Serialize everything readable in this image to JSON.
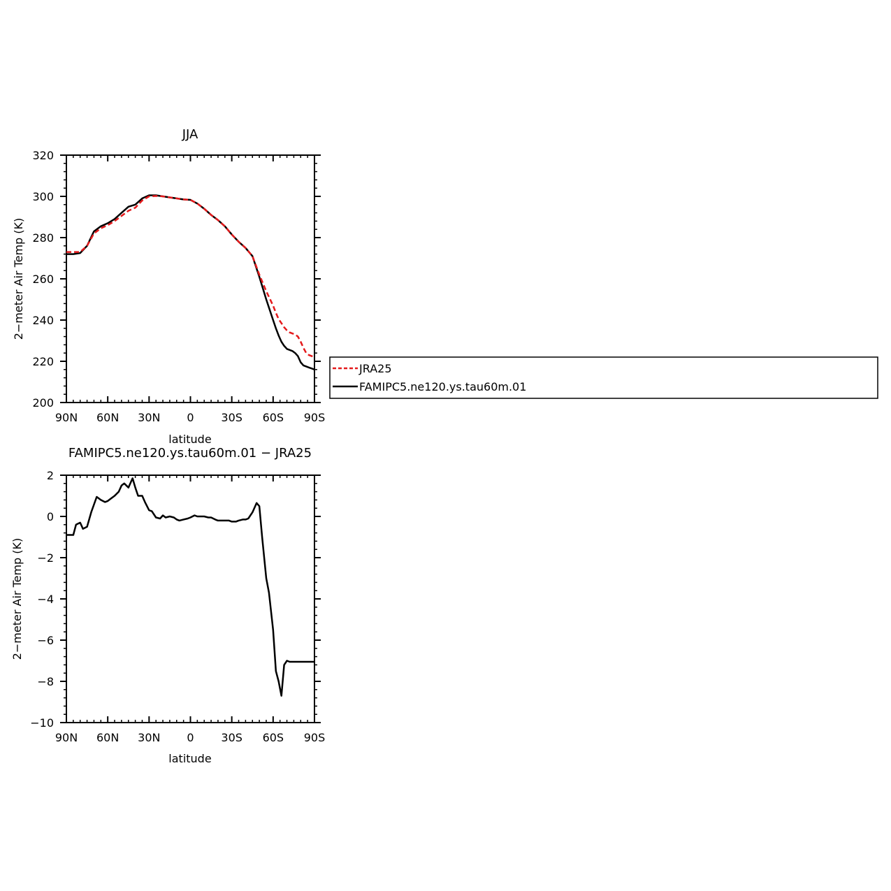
{
  "chart_data": [
    {
      "type": "line",
      "title": "JJA",
      "xlabel": "latitude",
      "ylabel": "2−meter Air Temp (K)",
      "xlim": [
        90,
        -90
      ],
      "ylim": [
        200,
        320
      ],
      "xticks": [
        90,
        60,
        30,
        0,
        -30,
        -60,
        -90
      ],
      "xtick_labels": [
        "90N",
        "60N",
        "30N",
        "0",
        "30S",
        "60S",
        "90S"
      ],
      "yticks": [
        200,
        220,
        240,
        260,
        280,
        300,
        320
      ],
      "ytick_labels": [
        "200",
        "220",
        "240",
        "260",
        "280",
        "300",
        "320"
      ],
      "legend": {
        "placement": "right-outside",
        "entries": [
          "JRA25",
          "FAMIPC5.ne120.ys.tau60m.01"
        ]
      },
      "series": [
        {
          "name": "JRA25",
          "color": "#e41a1c",
          "style": "dashed",
          "x": [
            90,
            85,
            80,
            75,
            70,
            65,
            60,
            55,
            50,
            45,
            40,
            35,
            30,
            25,
            20,
            15,
            10,
            5,
            0,
            -5,
            -10,
            -15,
            -20,
            -25,
            -30,
            -35,
            -40,
            -45,
            -50,
            -55,
            -60,
            -62,
            -64,
            -66,
            -68,
            -70,
            -72,
            -74,
            -76,
            -78,
            -80,
            -82,
            -84,
            -86,
            -88,
            -90
          ],
          "y": [
            273.0,
            273.0,
            273.0,
            276.0,
            282.0,
            284.5,
            286.0,
            288.0,
            290.5,
            293.0,
            294.5,
            298.0,
            300.0,
            300.2,
            300.0,
            299.5,
            299.0,
            298.5,
            298.3,
            296.5,
            294.0,
            291.0,
            288.5,
            285.5,
            281.5,
            278.0,
            275.0,
            271.0,
            262.0,
            254.0,
            247.0,
            243.5,
            240.5,
            238.5,
            236.5,
            235.0,
            234.0,
            233.5,
            233.0,
            232.0,
            229.5,
            226.5,
            224.0,
            223.0,
            222.5,
            222.0
          ]
        },
        {
          "name": "FAMIPC5.ne120.ys.tau60m.01",
          "color": "#000000",
          "style": "solid",
          "x": [
            90,
            85,
            80,
            75,
            70,
            65,
            60,
            55,
            50,
            45,
            40,
            35,
            30,
            25,
            20,
            15,
            10,
            5,
            0,
            -5,
            -10,
            -15,
            -20,
            -25,
            -30,
            -35,
            -40,
            -45,
            -50,
            -55,
            -60,
            -62,
            -64,
            -66,
            -68,
            -70,
            -72,
            -74,
            -76,
            -78,
            -80,
            -82,
            -84,
            -86,
            -88,
            -90
          ],
          "y": [
            272.0,
            272.0,
            272.5,
            276.0,
            283.0,
            285.5,
            287.0,
            289.0,
            292.0,
            295.0,
            296.0,
            299.0,
            300.5,
            300.5,
            300.0,
            299.5,
            299.0,
            298.5,
            298.3,
            296.5,
            294.0,
            291.0,
            288.5,
            285.5,
            281.5,
            278.0,
            275.0,
            271.0,
            261.0,
            250.0,
            240.0,
            236.0,
            232.5,
            229.5,
            227.5,
            226.0,
            225.5,
            225.0,
            224.0,
            222.5,
            219.5,
            218.0,
            217.5,
            217.0,
            216.5,
            216.0
          ]
        }
      ]
    },
    {
      "type": "line",
      "title": "FAMIPC5.ne120.ys.tau60m.01 − JRA25",
      "xlabel": "latitude",
      "ylabel": "2−meter Air Temp (K)",
      "xlim": [
        90,
        -90
      ],
      "ylim": [
        -10,
        2
      ],
      "xticks": [
        90,
        60,
        30,
        0,
        -30,
        -60,
        -90
      ],
      "xtick_labels": [
        "90N",
        "60N",
        "30N",
        "0",
        "30S",
        "60S",
        "90S"
      ],
      "yticks": [
        -10,
        -8,
        -6,
        -4,
        -2,
        0,
        2
      ],
      "ytick_labels": [
        "−10",
        "−8",
        "−6",
        "−4",
        "−2",
        "0",
        "2"
      ],
      "series": [
        {
          "color": "#000000",
          "style": "solid",
          "x": [
            90,
            88,
            85,
            83,
            80,
            78,
            75,
            72,
            68,
            65,
            62,
            60,
            58,
            55,
            52,
            50,
            48,
            45,
            42,
            40,
            38,
            35,
            33,
            30,
            28,
            25,
            22,
            20,
            18,
            15,
            12,
            10,
            8,
            5,
            2,
            0,
            -3,
            -5,
            -8,
            -10,
            -13,
            -15,
            -18,
            -20,
            -22,
            -25,
            -28,
            -30,
            -33,
            -35,
            -38,
            -40,
            -42,
            -45,
            -48,
            -50,
            -52,
            -55,
            -57,
            -60,
            -62,
            -64,
            -66,
            -68,
            -70,
            -72,
            -75,
            -78,
            -80,
            -82,
            -85,
            -88,
            -90
          ],
          "y": [
            -0.9,
            -0.9,
            -0.9,
            -0.4,
            -0.3,
            -0.6,
            -0.5,
            0.2,
            0.95,
            0.8,
            0.7,
            0.75,
            0.85,
            1.0,
            1.2,
            1.5,
            1.6,
            1.4,
            1.85,
            1.4,
            1.0,
            1.0,
            0.7,
            0.3,
            0.25,
            -0.05,
            -0.1,
            0.05,
            -0.05,
            0.0,
            -0.05,
            -0.15,
            -0.2,
            -0.15,
            -0.1,
            -0.05,
            0.05,
            0.0,
            0.0,
            0.0,
            -0.05,
            -0.05,
            -0.15,
            -0.2,
            -0.2,
            -0.2,
            -0.2,
            -0.25,
            -0.25,
            -0.2,
            -0.15,
            -0.15,
            -0.1,
            0.2,
            0.65,
            0.5,
            -1.0,
            -3.0,
            -3.7,
            -5.5,
            -7.5,
            -8.0,
            -8.7,
            -7.2,
            -7.0,
            -7.05,
            -7.05,
            -7.05,
            -7.05,
            -7.05,
            -7.05,
            -7.05,
            -7.05
          ]
        }
      ]
    }
  ]
}
